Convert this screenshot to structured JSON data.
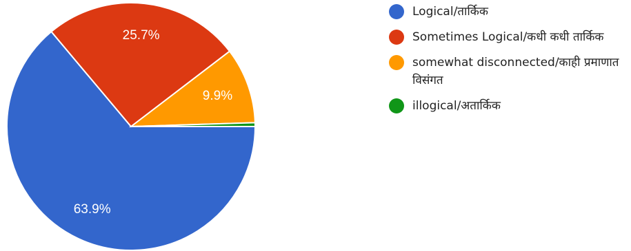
{
  "chart_data": {
    "type": "pie",
    "slices": [
      {
        "label": "Logical/तार्किक",
        "value": 63.9,
        "display": "63.9%",
        "color": "#3366cc"
      },
      {
        "label": "Sometimes Logical/कधी कधी तार्किक",
        "value": 25.7,
        "display": "25.7%",
        "color": "#dc3912"
      },
      {
        "label": "somewhat disconnected/काही प्रमाणात विसंगत",
        "value": 9.9,
        "display": "9.9%",
        "color": "#ff9900"
      },
      {
        "label": "illogical/अतार्किक",
        "value": 0.5,
        "display": "",
        "color": "#109618"
      }
    ],
    "legend_position": "right",
    "start": "3 o'clock, clockwise"
  }
}
